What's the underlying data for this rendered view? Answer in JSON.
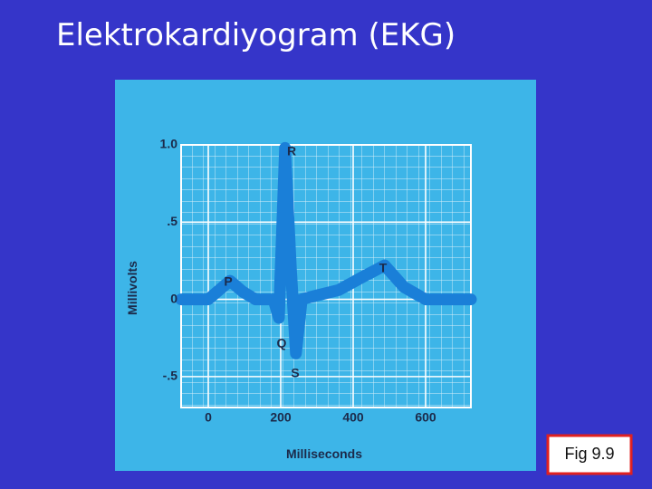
{
  "chart_data": {
    "type": "line",
    "title": "Elektrokardiyogram (EKG)",
    "xlabel": "Milliseconds",
    "ylabel": "Millivolts",
    "x": [
      -75,
      0,
      30,
      60,
      95,
      130,
      180,
      195,
      212,
      228,
      242,
      258,
      290,
      360,
      430,
      487,
      540,
      600,
      725
    ],
    "series": [
      {
        "color": "#1a7fd8",
        "values": [
          0,
          0,
          0.06,
          0.12,
          0.05,
          0,
          0,
          -0.12,
          0.98,
          0.2,
          -0.35,
          0,
          0.02,
          0.06,
          0.15,
          0.22,
          0.08,
          0,
          0
        ]
      }
    ],
    "xlim": [
      -75,
      725
    ],
    "xticks": [
      0,
      200,
      400,
      600
    ],
    "ylim": [
      -0.7,
      1.0
    ],
    "yticks": [
      {
        "value": -0.5,
        "label": "-.5"
      },
      {
        "value": 0,
        "label": "0"
      },
      {
        "value": 0.5,
        "label": ".5"
      },
      {
        "value": 1.0,
        "label": "1.0"
      }
    ],
    "annotations": [
      "P",
      "Q",
      "R",
      "S",
      "T"
    ],
    "caption": "Fig 9.9"
  }
}
